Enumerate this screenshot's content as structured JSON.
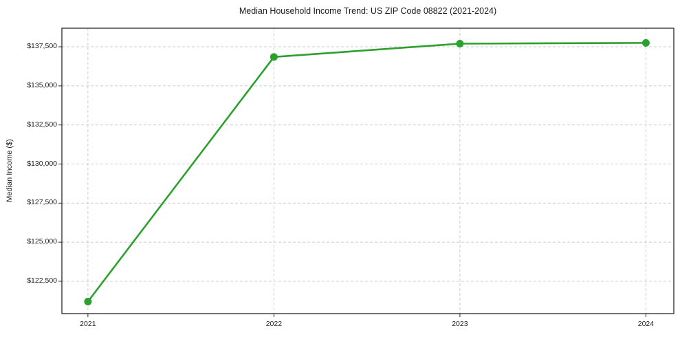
{
  "chart_data": {
    "type": "line",
    "title": "Median Household Income Trend: US ZIP Code 08822 (2021-2024)",
    "xlabel": "",
    "ylabel": "Median Income ($)",
    "x": [
      2021,
      2022,
      2023,
      2024
    ],
    "x_tick_labels": [
      "2021",
      "2022",
      "2023",
      "2024"
    ],
    "series": [
      {
        "name": "Median household income",
        "values": [
          121200,
          136850,
          137700,
          137750
        ]
      }
    ],
    "y_ticks": [
      {
        "value": 122500,
        "label": "$122,500"
      },
      {
        "value": 125000,
        "label": "$125,000"
      },
      {
        "value": 127500,
        "label": "$127,500"
      },
      {
        "value": 130000,
        "label": "$130,000"
      },
      {
        "value": 132500,
        "label": "$132,500"
      },
      {
        "value": 135000,
        "label": "$135,000"
      },
      {
        "value": 137500,
        "label": "$137,500"
      }
    ],
    "xlim": [
      2020.86,
      2024.15
    ],
    "ylim": [
      120430,
      138690
    ],
    "grid": true,
    "grid_style": "dashed",
    "legend": false,
    "line_color": "#2ca02c",
    "marker": "circle",
    "grid_color": "#cccccc",
    "spine_color": "#262626",
    "text_color": "#1a1a1a",
    "background_color": "#ffffff"
  }
}
